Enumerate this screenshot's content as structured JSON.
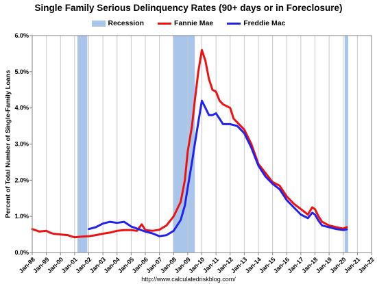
{
  "chart_data": {
    "type": "line",
    "title": "Single Family Serious Delinquency Rates (90+ days or in Foreclosure)",
    "ylabel": "Percent of Total Number of Single-Family Loans",
    "xlabel": "",
    "ylim": [
      0,
      6
    ],
    "y_ticks": [
      "0.0%",
      "1.0%",
      "2.0%",
      "3.0%",
      "4.0%",
      "5.0%",
      "6.0%"
    ],
    "x_range": [
      1998.0,
      2022.0
    ],
    "x_ticks": [
      "Jan-98",
      "Jan-99",
      "Jan-00",
      "Jan-01",
      "Jan-02",
      "Jan-03",
      "Jan-04",
      "Jan-05",
      "Jan-06",
      "Jan-07",
      "Jan-08",
      "Jan-09",
      "Jan-10",
      "Jan-11",
      "Jan-12",
      "Jan-13",
      "Jan-14",
      "Jan-15",
      "Jan-16",
      "Jan-17",
      "Jan-18",
      "Jan-19",
      "Jan-20",
      "Jan-21",
      "Jan-22"
    ],
    "grid": "vertical",
    "legend": "top",
    "recessions": [
      [
        2001.2,
        2001.9
      ],
      [
        2007.95,
        2009.5
      ],
      [
        2020.1,
        2020.35
      ]
    ],
    "series": [
      {
        "name": "Fannie Mae",
        "color": "#ee1111",
        "points": [
          [
            1998.0,
            0.65
          ],
          [
            1998.5,
            0.58
          ],
          [
            1999.0,
            0.6
          ],
          [
            1999.25,
            0.55
          ],
          [
            1999.5,
            0.52
          ],
          [
            2000.0,
            0.5
          ],
          [
            2000.5,
            0.48
          ],
          [
            2001.0,
            0.42
          ],
          [
            2001.5,
            0.44
          ],
          [
            2002.0,
            0.45
          ],
          [
            2002.5,
            0.48
          ],
          [
            2003.0,
            0.52
          ],
          [
            2003.5,
            0.55
          ],
          [
            2004.0,
            0.6
          ],
          [
            2004.5,
            0.62
          ],
          [
            2005.0,
            0.62
          ],
          [
            2005.4,
            0.6
          ],
          [
            2005.75,
            0.78
          ],
          [
            2006.0,
            0.62
          ],
          [
            2006.5,
            0.6
          ],
          [
            2007.0,
            0.63
          ],
          [
            2007.5,
            0.75
          ],
          [
            2008.0,
            1.0
          ],
          [
            2008.5,
            1.4
          ],
          [
            2008.8,
            2.0
          ],
          [
            2009.0,
            2.8
          ],
          [
            2009.3,
            3.5
          ],
          [
            2009.5,
            4.2
          ],
          [
            2009.75,
            5.0
          ],
          [
            2010.0,
            5.6
          ],
          [
            2010.25,
            5.3
          ],
          [
            2010.5,
            4.8
          ],
          [
            2010.75,
            4.5
          ],
          [
            2011.0,
            4.45
          ],
          [
            2011.25,
            4.2
          ],
          [
            2011.5,
            4.1
          ],
          [
            2012.0,
            4.0
          ],
          [
            2012.25,
            3.7
          ],
          [
            2012.5,
            3.6
          ],
          [
            2013.0,
            3.4
          ],
          [
            2013.5,
            3.0
          ],
          [
            2014.0,
            2.45
          ],
          [
            2014.5,
            2.2
          ],
          [
            2015.0,
            1.95
          ],
          [
            2015.5,
            1.85
          ],
          [
            2016.0,
            1.55
          ],
          [
            2016.5,
            1.35
          ],
          [
            2017.0,
            1.2
          ],
          [
            2017.5,
            1.05
          ],
          [
            2017.8,
            1.25
          ],
          [
            2018.0,
            1.2
          ],
          [
            2018.25,
            1.0
          ],
          [
            2018.5,
            0.85
          ],
          [
            2019.0,
            0.75
          ],
          [
            2019.5,
            0.7
          ],
          [
            2020.0,
            0.66
          ],
          [
            2020.25,
            0.7
          ]
        ]
      },
      {
        "name": "Freddie Mac",
        "color": "#2222ee",
        "points": [
          [
            2002.0,
            0.65
          ],
          [
            2002.5,
            0.7
          ],
          [
            2003.0,
            0.8
          ],
          [
            2003.5,
            0.85
          ],
          [
            2004.0,
            0.82
          ],
          [
            2004.5,
            0.85
          ],
          [
            2005.0,
            0.72
          ],
          [
            2005.5,
            0.65
          ],
          [
            2006.0,
            0.58
          ],
          [
            2006.5,
            0.53
          ],
          [
            2007.0,
            0.45
          ],
          [
            2007.5,
            0.48
          ],
          [
            2008.0,
            0.6
          ],
          [
            2008.5,
            0.9
          ],
          [
            2008.8,
            1.3
          ],
          [
            2009.0,
            1.8
          ],
          [
            2009.3,
            2.5
          ],
          [
            2009.5,
            3.0
          ],
          [
            2009.75,
            3.6
          ],
          [
            2010.0,
            4.2
          ],
          [
            2010.25,
            4.0
          ],
          [
            2010.5,
            3.8
          ],
          [
            2010.75,
            3.8
          ],
          [
            2011.0,
            3.85
          ],
          [
            2011.25,
            3.7
          ],
          [
            2011.5,
            3.55
          ],
          [
            2012.0,
            3.55
          ],
          [
            2012.5,
            3.5
          ],
          [
            2013.0,
            3.3
          ],
          [
            2013.5,
            2.9
          ],
          [
            2014.0,
            2.4
          ],
          [
            2014.5,
            2.1
          ],
          [
            2015.0,
            1.9
          ],
          [
            2015.5,
            1.75
          ],
          [
            2016.0,
            1.45
          ],
          [
            2016.5,
            1.25
          ],
          [
            2017.0,
            1.05
          ],
          [
            2017.5,
            0.95
          ],
          [
            2017.8,
            1.1
          ],
          [
            2018.0,
            1.05
          ],
          [
            2018.25,
            0.88
          ],
          [
            2018.5,
            0.75
          ],
          [
            2019.0,
            0.7
          ],
          [
            2019.5,
            0.65
          ],
          [
            2020.0,
            0.62
          ],
          [
            2020.25,
            0.64
          ]
        ]
      }
    ]
  },
  "legend": {
    "recession_label": "Recession",
    "fannie_label": "Fannie Mae",
    "freddie_label": "Freddie Mac",
    "recession_color": "#a9c6ea"
  },
  "footer": {
    "source": "http://www.calculatedriskblog.com/"
  }
}
